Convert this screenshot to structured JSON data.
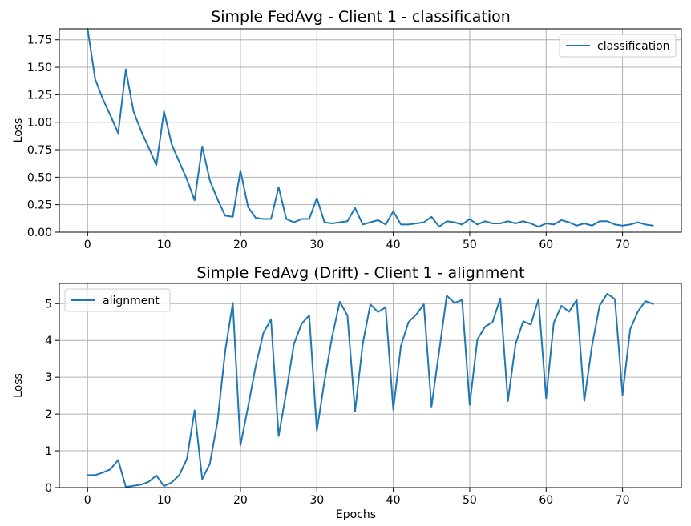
{
  "chart_data": [
    {
      "type": "line",
      "title": "Simple FedAvg - Client 1 - classification",
      "xlabel": "",
      "ylabel": "Loss",
      "xlim": [
        -3.7,
        77.7
      ],
      "ylim": [
        0,
        1.85
      ],
      "xticks": [
        0,
        10,
        20,
        30,
        40,
        50,
        60,
        70
      ],
      "yticks": [
        0.0,
        0.25,
        0.5,
        0.75,
        1.0,
        1.25,
        1.5,
        1.75
      ],
      "ytick_labels": [
        "0.00",
        "0.25",
        "0.50",
        "0.75",
        "1.00",
        "1.25",
        "1.50",
        "1.75"
      ],
      "grid": true,
      "legend": "top-right",
      "color": "#1f77b4",
      "series": [
        {
          "name": "classification",
          "values": [
            1.85,
            1.39,
            1.21,
            1.06,
            0.9,
            1.48,
            1.1,
            0.92,
            0.77,
            0.61,
            1.1,
            0.8,
            0.64,
            0.48,
            0.29,
            0.78,
            0.47,
            0.3,
            0.15,
            0.14,
            0.56,
            0.23,
            0.13,
            0.12,
            0.12,
            0.41,
            0.12,
            0.09,
            0.12,
            0.12,
            0.31,
            0.09,
            0.08,
            0.09,
            0.1,
            0.22,
            0.07,
            0.09,
            0.11,
            0.07,
            0.19,
            0.07,
            0.07,
            0.08,
            0.09,
            0.14,
            0.05,
            0.1,
            0.09,
            0.07,
            0.12,
            0.07,
            0.1,
            0.08,
            0.08,
            0.1,
            0.08,
            0.1,
            0.08,
            0.05,
            0.08,
            0.07,
            0.11,
            0.09,
            0.06,
            0.08,
            0.06,
            0.1,
            0.1,
            0.07,
            0.06,
            0.07,
            0.09,
            0.07,
            0.06
          ]
        }
      ]
    },
    {
      "type": "line",
      "title": "Simple FedAvg (Drift) - Client 1 - alignment",
      "xlabel": "Epochs",
      "ylabel": "Loss",
      "xlim": [
        -3.7,
        77.7
      ],
      "ylim": [
        0,
        5.55
      ],
      "xticks": [
        0,
        10,
        20,
        30,
        40,
        50,
        60,
        70
      ],
      "yticks": [
        0,
        1,
        2,
        3,
        4,
        5
      ],
      "ytick_labels": [
        "0",
        "1",
        "2",
        "3",
        "4",
        "5"
      ],
      "grid": true,
      "legend": "top-left",
      "color": "#1f77b4",
      "series": [
        {
          "name": "alignment",
          "values": [
            0.34,
            0.34,
            0.41,
            0.5,
            0.75,
            0.02,
            0.05,
            0.08,
            0.16,
            0.33,
            0.04,
            0.14,
            0.34,
            0.78,
            2.1,
            0.23,
            0.65,
            1.8,
            3.7,
            5.02,
            1.15,
            2.2,
            3.3,
            4.2,
            4.57,
            1.4,
            2.6,
            3.9,
            4.45,
            4.68,
            1.55,
            2.9,
            4.1,
            5.05,
            4.68,
            2.07,
            3.9,
            4.98,
            4.77,
            4.9,
            2.12,
            3.85,
            4.5,
            4.7,
            4.98,
            2.2,
            3.7,
            5.22,
            5.02,
            5.1,
            2.25,
            4.02,
            4.37,
            4.5,
            5.14,
            2.35,
            3.9,
            4.52,
            4.43,
            5.12,
            2.43,
            4.48,
            4.94,
            4.78,
            5.1,
            2.36,
            3.85,
            4.95,
            5.27,
            5.12,
            2.52,
            4.3,
            4.78,
            5.07,
            4.99
          ]
        }
      ]
    }
  ]
}
